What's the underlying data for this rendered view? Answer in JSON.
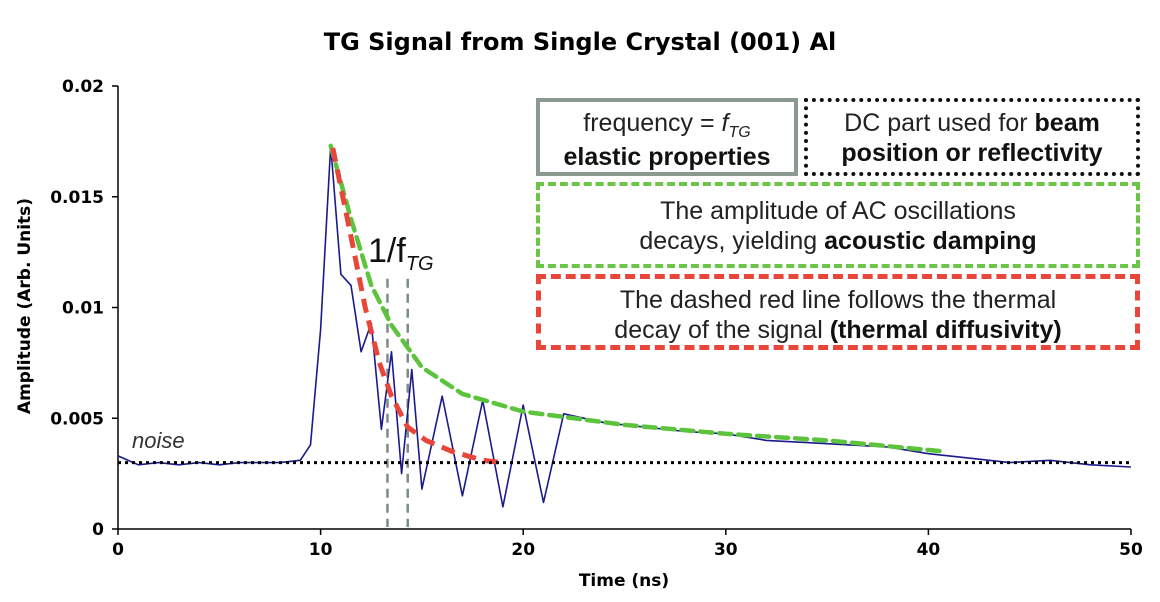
{
  "chart_data": {
    "type": "line",
    "title": "TG Signal from Single Crystal (001) Al",
    "xlabel": "Time (ns)",
    "ylabel": "Amplitude (Arb. Units)",
    "xlim": [
      0,
      50
    ],
    "ylim": [
      0,
      0.02
    ],
    "x_ticks": [
      "0",
      "10",
      "20",
      "30",
      "40",
      "50"
    ],
    "y_ticks": [
      "0",
      "0.005",
      "0.01",
      "0.015",
      "0.02"
    ],
    "grid": false,
    "series": [
      {
        "role": "signal",
        "color": "#1a1a8c",
        "points": [
          [
            0,
            0.0033
          ],
          [
            1,
            0.0029
          ],
          [
            2,
            0.003
          ],
          [
            3,
            0.0029
          ],
          [
            4,
            0.003
          ],
          [
            5,
            0.0029
          ],
          [
            6,
            0.003
          ],
          [
            7,
            0.003
          ],
          [
            8,
            0.003
          ],
          [
            9,
            0.0031
          ],
          [
            9.5,
            0.0038
          ],
          [
            10,
            0.009
          ],
          [
            10.5,
            0.0173
          ],
          [
            11,
            0.0115
          ],
          [
            11.5,
            0.011
          ],
          [
            12,
            0.008
          ],
          [
            12.5,
            0.0093
          ],
          [
            13,
            0.0045
          ],
          [
            13.5,
            0.008
          ],
          [
            14,
            0.0025
          ],
          [
            14.5,
            0.0072
          ],
          [
            15,
            0.0018
          ],
          [
            16,
            0.006
          ],
          [
            17,
            0.0015
          ],
          [
            18,
            0.0058
          ],
          [
            19,
            0.001
          ],
          [
            20,
            0.0056
          ],
          [
            21,
            0.0012
          ],
          [
            22,
            0.0052
          ],
          [
            24,
            0.0048
          ],
          [
            26,
            0.0046
          ],
          [
            28,
            0.0044
          ],
          [
            30,
            0.0043
          ],
          [
            32,
            0.004
          ],
          [
            34,
            0.0039
          ],
          [
            36,
            0.0038
          ],
          [
            38,
            0.0037
          ],
          [
            40,
            0.0034
          ],
          [
            42,
            0.0032
          ],
          [
            44,
            0.003
          ],
          [
            46,
            0.0031
          ],
          [
            48,
            0.0029
          ],
          [
            50,
            0.0028
          ]
        ]
      },
      {
        "role": "acoustic damping envelope",
        "color": "#5cc43c",
        "points": [
          [
            10.5,
            0.0173
          ],
          [
            11.5,
            0.014
          ],
          [
            12.5,
            0.011
          ],
          [
            13.5,
            0.0092
          ],
          [
            15,
            0.0073
          ],
          [
            17,
            0.0061
          ],
          [
            20,
            0.0053
          ],
          [
            25,
            0.0047
          ],
          [
            30,
            0.0043
          ],
          [
            35,
            0.004
          ],
          [
            40.8,
            0.0035
          ]
        ]
      },
      {
        "role": "thermal decay",
        "color": "#e8463a",
        "points": [
          [
            10.6,
            0.0172
          ],
          [
            11.5,
            0.0132
          ],
          [
            12.2,
            0.01
          ],
          [
            12.9,
            0.0075
          ],
          [
            13.5,
            0.006
          ],
          [
            14.3,
            0.0046
          ],
          [
            15.2,
            0.004
          ],
          [
            16.5,
            0.0035
          ],
          [
            18,
            0.0031
          ],
          [
            19,
            0.003
          ]
        ]
      },
      {
        "role": "noise level",
        "color": "#000000",
        "points": [
          [
            0,
            0.003
          ],
          [
            50,
            0.003
          ]
        ]
      }
    ],
    "period_markers_x": [
      13.3,
      14.3
    ],
    "annotations": {
      "period": "1/f",
      "period_sub": "TG",
      "noise": "noise"
    }
  },
  "boxes": {
    "freq_line1": "frequency = ",
    "freq_f": "f",
    "freq_sub": "TG",
    "freq_line2": "elastic properties",
    "dc_line1_a": "DC part used for ",
    "dc_line1_b": "beam",
    "dc_line2": "position or reflectivity",
    "ac_line1": "The amplitude of AC oscillations",
    "ac_line2_a": "decays, yielding ",
    "ac_line2_b": "acoustic damping",
    "red_line1": "The dashed red line follows the thermal",
    "red_line2_a": "decay of the signal ",
    "red_line2_b": "(thermal diffusivity)"
  }
}
